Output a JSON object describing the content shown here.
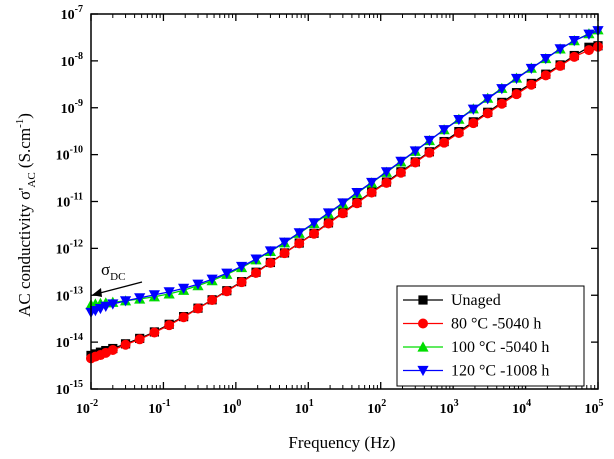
{
  "chart_data": {
    "type": "line",
    "xlabel": "Frequency (Hz)",
    "ylabel": "AC conductivity σ'AC (S.cm-1)",
    "ylabel_parts": {
      "main": "AC conductivity σ'",
      "sub": "AC",
      "unit_open": " (S.cm",
      "unit_sup": "-1",
      "unit_close": ")"
    },
    "x_scale": "log",
    "y_scale": "log",
    "xlim": [
      0.01,
      100000
    ],
    "ylim": [
      1e-15,
      1e-07
    ],
    "x_ticks": [
      {
        "base": "10",
        "exp": "-2",
        "value": 0.01
      },
      {
        "base": "10",
        "exp": "-1",
        "value": 0.1
      },
      {
        "base": "10",
        "exp": "0",
        "value": 1
      },
      {
        "base": "10",
        "exp": "1",
        "value": 10
      },
      {
        "base": "10",
        "exp": "2",
        "value": 100
      },
      {
        "base": "10",
        "exp": "3",
        "value": 1000
      },
      {
        "base": "10",
        "exp": "4",
        "value": 10000
      },
      {
        "base": "10",
        "exp": "5",
        "value": 100000
      }
    ],
    "y_ticks": [
      {
        "base": "10",
        "exp": "-15",
        "value": 1e-15
      },
      {
        "base": "10",
        "exp": "-14",
        "value": 1e-14
      },
      {
        "base": "10",
        "exp": "-13",
        "value": 1e-13
      },
      {
        "base": "10",
        "exp": "-12",
        "value": 1e-12
      },
      {
        "base": "10",
        "exp": "-11",
        "value": 1e-11
      },
      {
        "base": "10",
        "exp": "-10",
        "value": 1e-10
      },
      {
        "base": "10",
        "exp": "-9",
        "value": 1e-09
      },
      {
        "base": "10",
        "exp": "-8",
        "value": 1e-08
      },
      {
        "base": "10",
        "exp": "-7",
        "value": 1e-07
      }
    ],
    "grid": false,
    "legend_position": "bottom-right",
    "annotation": {
      "text": "σ",
      "sub": "DC",
      "points_to_x": 0.01,
      "points_to_y": 6.5e-14
    },
    "series": [
      {
        "name": "Unaged",
        "color": "#000000",
        "marker": "square",
        "points": [
          [
            0.01,
            5.2e-15
          ],
          [
            0.0115,
            5.6e-15
          ],
          [
            0.0135,
            6.1e-15
          ],
          [
            0.016,
            6.6e-15
          ],
          [
            0.02,
            7.3e-15
          ],
          [
            0.03,
            9.2e-15
          ],
          [
            0.047,
            1.2e-14
          ],
          [
            0.075,
            1.65e-14
          ],
          [
            0.12,
            2.4e-14
          ],
          [
            0.19,
            3.5e-14
          ],
          [
            0.3,
            5.3e-14
          ],
          [
            0.47,
            8e-14
          ],
          [
            0.75,
            1.25e-13
          ],
          [
            1.2,
            1.95e-13
          ],
          [
            1.9,
            3.1e-13
          ],
          [
            3,
            5e-13
          ],
          [
            4.7,
            8e-13
          ],
          [
            7.5,
            1.3e-12
          ],
          [
            12,
            2.1e-12
          ],
          [
            19,
            3.5e-12
          ],
          [
            30,
            5.8e-12
          ],
          [
            47,
            9.5e-12
          ],
          [
            75,
            1.6e-11
          ],
          [
            120,
            2.6e-11
          ],
          [
            190,
            4.3e-11
          ],
          [
            300,
            7e-11
          ],
          [
            470,
            1.15e-10
          ],
          [
            750,
            1.9e-10
          ],
          [
            1200,
            3.1e-10
          ],
          [
            1900,
            5e-10
          ],
          [
            3000,
            8e-10
          ],
          [
            4700,
            1.3e-09
          ],
          [
            7500,
            2.1e-09
          ],
          [
            12000,
            3.3e-09
          ],
          [
            19000,
            5.2e-09
          ],
          [
            30000,
            8.2e-09
          ],
          [
            47000,
            1.3e-08
          ],
          [
            75000,
            1.95e-08
          ],
          [
            100000,
            2.1e-08
          ]
        ]
      },
      {
        "name": "80 °C -5040 h",
        "color": "#ff0000",
        "marker": "circle",
        "points": [
          [
            0.01,
            4.5e-15
          ],
          [
            0.0115,
            4.9e-15
          ],
          [
            0.0135,
            5.3e-15
          ],
          [
            0.016,
            5.9e-15
          ],
          [
            0.02,
            6.8e-15
          ],
          [
            0.03,
            8.8e-15
          ],
          [
            0.047,
            1.15e-14
          ],
          [
            0.075,
            1.6e-14
          ],
          [
            0.12,
            2.3e-14
          ],
          [
            0.19,
            3.4e-14
          ],
          [
            0.3,
            5.2e-14
          ],
          [
            0.47,
            7.9e-14
          ],
          [
            0.75,
            1.22e-13
          ],
          [
            1.2,
            1.9e-13
          ],
          [
            1.9,
            3e-13
          ],
          [
            3,
            4.9e-13
          ],
          [
            4.7,
            7.9e-13
          ],
          [
            7.5,
            1.28e-12
          ],
          [
            12,
            2.05e-12
          ],
          [
            19,
            3.4e-12
          ],
          [
            30,
            5.6e-12
          ],
          [
            47,
            9.2e-12
          ],
          [
            75,
            1.55e-11
          ],
          [
            120,
            2.5e-11
          ],
          [
            190,
            4.1e-11
          ],
          [
            300,
            6.8e-11
          ],
          [
            470,
            1.1e-10
          ],
          [
            750,
            1.8e-10
          ],
          [
            1200,
            2.9e-10
          ],
          [
            1900,
            4.7e-10
          ],
          [
            3000,
            7.6e-10
          ],
          [
            4700,
            1.22e-09
          ],
          [
            7500,
            1.95e-09
          ],
          [
            12000,
            3.1e-09
          ],
          [
            19000,
            4.9e-09
          ],
          [
            30000,
            7.8e-09
          ],
          [
            47000,
            1.22e-08
          ],
          [
            75000,
            1.7e-08
          ],
          [
            100000,
            2e-08
          ]
        ]
      },
      {
        "name": "100 °C -5040 h",
        "color": "#00dd00",
        "marker": "triangle-up",
        "points": [
          [
            0.01,
            6.3e-14
          ],
          [
            0.0115,
            6.5e-14
          ],
          [
            0.0135,
            6.7e-14
          ],
          [
            0.016,
            6.9e-14
          ],
          [
            0.02,
            7.1e-14
          ],
          [
            0.03,
            7.6e-14
          ],
          [
            0.047,
            8.3e-14
          ],
          [
            0.075,
            9.3e-14
          ],
          [
            0.12,
            1.07e-13
          ],
          [
            0.19,
            1.28e-13
          ],
          [
            0.3,
            1.6e-13
          ],
          [
            0.47,
            2.05e-13
          ],
          [
            0.75,
            2.8e-13
          ],
          [
            1.2,
            3.9e-13
          ],
          [
            1.9,
            5.7e-13
          ],
          [
            3,
            8.6e-13
          ],
          [
            4.7,
            1.32e-12
          ],
          [
            7.5,
            2.1e-12
          ],
          [
            12,
            3.4e-12
          ],
          [
            19,
            5.5e-12
          ],
          [
            30,
            9e-12
          ],
          [
            47,
            1.5e-11
          ],
          [
            75,
            2.5e-11
          ],
          [
            120,
            4.2e-11
          ],
          [
            190,
            7e-11
          ],
          [
            300,
            1.18e-10
          ],
          [
            470,
            2e-10
          ],
          [
            750,
            3.4e-10
          ],
          [
            1200,
            5.7e-10
          ],
          [
            1900,
            9.5e-10
          ],
          [
            3000,
            1.6e-09
          ],
          [
            4700,
            2.6e-09
          ],
          [
            7500,
            4.3e-09
          ],
          [
            12000,
            7e-09
          ],
          [
            19000,
            1.12e-08
          ],
          [
            30000,
            1.8e-08
          ],
          [
            47000,
            2.7e-08
          ],
          [
            75000,
            3.8e-08
          ],
          [
            100000,
            4.6e-08
          ]
        ]
      },
      {
        "name": "120 °C -1008 h",
        "color": "#0000ff",
        "marker": "triangle-down",
        "points": [
          [
            0.01,
            4.3e-14
          ],
          [
            0.0115,
            4.7e-14
          ],
          [
            0.0135,
            5.2e-14
          ],
          [
            0.016,
            5.8e-14
          ],
          [
            0.02,
            6.5e-14
          ],
          [
            0.03,
            7.6e-14
          ],
          [
            0.047,
            8.8e-14
          ],
          [
            0.075,
            1.02e-13
          ],
          [
            0.12,
            1.18e-13
          ],
          [
            0.19,
            1.4e-13
          ],
          [
            0.3,
            1.72e-13
          ],
          [
            0.47,
            2.2e-13
          ],
          [
            0.75,
            2.95e-13
          ],
          [
            1.2,
            4.1e-13
          ],
          [
            1.9,
            5.9e-13
          ],
          [
            3,
            8.8e-13
          ],
          [
            4.7,
            1.35e-12
          ],
          [
            7.5,
            2.15e-12
          ],
          [
            12,
            3.5e-12
          ],
          [
            19,
            5.7e-12
          ],
          [
            30,
            9.3e-12
          ],
          [
            47,
            1.55e-11
          ],
          [
            75,
            2.55e-11
          ],
          [
            120,
            4.3e-11
          ],
          [
            190,
            7.2e-11
          ],
          [
            300,
            1.2e-10
          ],
          [
            470,
            2e-10
          ],
          [
            750,
            3.4e-10
          ],
          [
            1200,
            5.6e-10
          ],
          [
            1900,
            9.3e-10
          ],
          [
            3000,
            1.55e-09
          ],
          [
            4700,
            2.55e-09
          ],
          [
            7500,
            4.2e-09
          ],
          [
            12000,
            6.9e-09
          ],
          [
            19000,
            1.12e-08
          ],
          [
            30000,
            1.8e-08
          ],
          [
            47000,
            2.7e-08
          ],
          [
            75000,
            3.7e-08
          ],
          [
            100000,
            4.4e-08
          ]
        ]
      }
    ]
  }
}
